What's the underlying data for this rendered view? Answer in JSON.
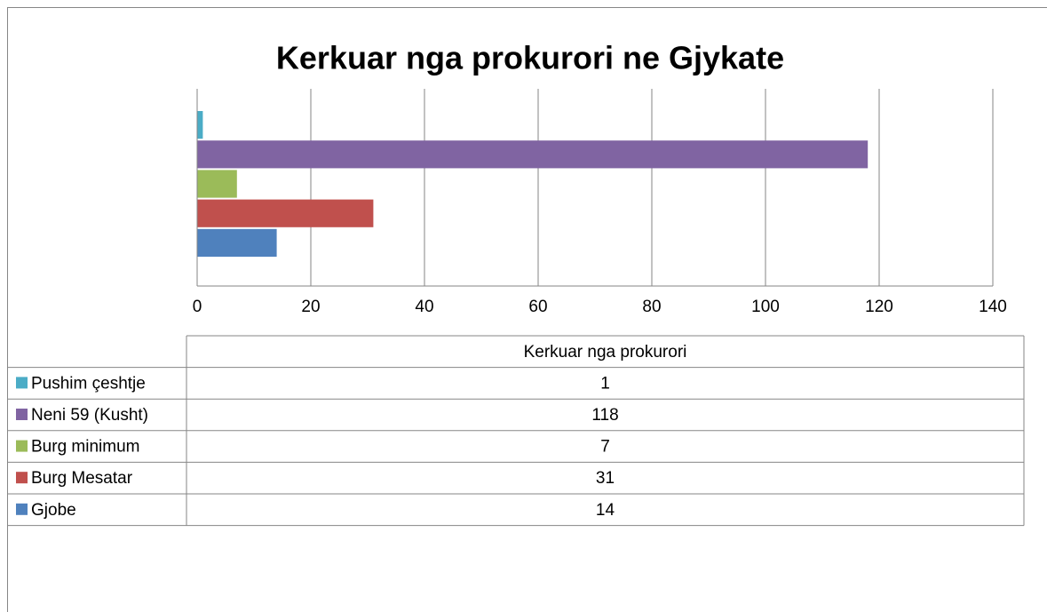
{
  "chart_data": {
    "type": "bar",
    "orientation": "horizontal",
    "title": "Kerkuar nga prokurori ne Gjykate",
    "categories": [
      "Pushim çeshtje",
      "Neni 59 (Kusht)",
      "Burg minimum",
      "Burg Mesatar",
      "Gjobe"
    ],
    "series": [
      {
        "name": "Kerkuar nga prokurori",
        "values": [
          1,
          118,
          7,
          31,
          14
        ]
      }
    ],
    "colors": [
      "#4bacc6",
      "#8064a2",
      "#9bbb59",
      "#c0504d",
      "#4f81bd"
    ],
    "xlim": [
      0,
      140
    ],
    "xticks": [
      0,
      20,
      40,
      60,
      80,
      100,
      120,
      140
    ],
    "grid": true
  }
}
